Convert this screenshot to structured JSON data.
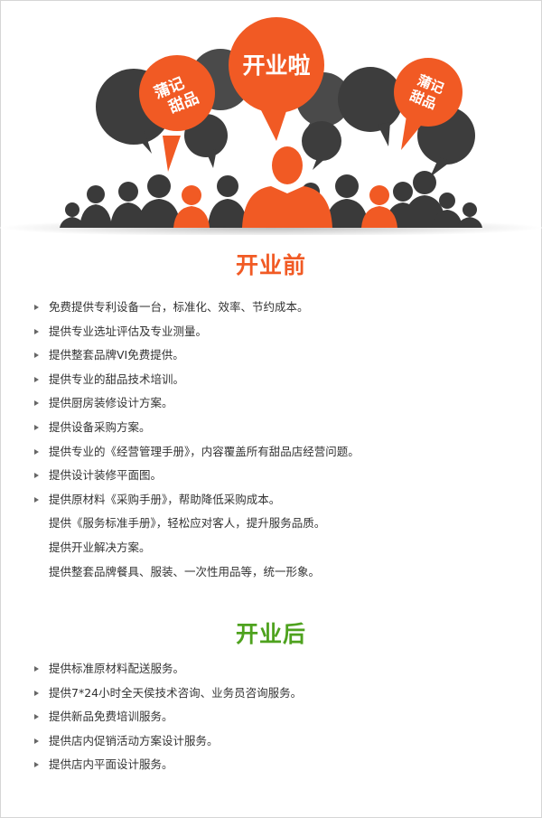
{
  "hero": {
    "main_bubble": "开业啦",
    "left_bubble": [
      "蒲记",
      "甜品"
    ],
    "right_bubble": [
      "蒲记",
      "甜品"
    ],
    "colors": {
      "orange": "#f15a24",
      "dark": "#3d3d3d",
      "gray": "#4a4a4a"
    }
  },
  "before": {
    "title": "开业前",
    "items": [
      {
        "text": "免费提供专利设备一台，标准化、效率、节约成本。",
        "bullet": true
      },
      {
        "text": "提供专业选址评估及专业测量。",
        "bullet": true
      },
      {
        "text": "提供整套品牌VI免费提供。",
        "bullet": true
      },
      {
        "text": "提供专业的甜品技术培训。",
        "bullet": true
      },
      {
        "text": "提供厨房装修设计方案。",
        "bullet": true
      },
      {
        "text": "提供设备采购方案。",
        "bullet": true
      },
      {
        "text": "提供专业的《经营管理手册》，内容覆盖所有甜品店经营问题。",
        "bullet": true
      },
      {
        "text": "提供设计装修平面图。",
        "bullet": true
      },
      {
        "text": "提供原材料《采购手册》，帮助降低采购成本。",
        "bullet": true
      },
      {
        "text": "提供《服务标准手册》，轻松应对客人，提升服务品质。",
        "bullet": false
      },
      {
        "text": "提供开业解决方案。",
        "bullet": false
      },
      {
        "text": "提供整套品牌餐具、服装、一次性用品等，统一形象。",
        "bullet": false
      }
    ]
  },
  "after": {
    "title": "开业后",
    "items": [
      {
        "text": "提供标准原材料配送服务。",
        "bullet": true
      },
      {
        "text": "提供7*24小时全天侯技术咨询、业务员咨询服务。",
        "bullet": true
      },
      {
        "text": "提供新品免费培训服务。",
        "bullet": true
      },
      {
        "text": "提供店内促销活动方案设计服务。",
        "bullet": true
      },
      {
        "text": "提供店内平面设计服务。",
        "bullet": true
      }
    ]
  }
}
